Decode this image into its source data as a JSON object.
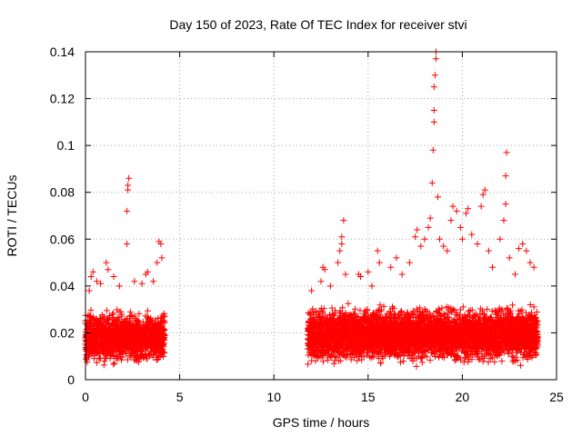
{
  "chart_data": {
    "type": "scatter",
    "title": "Day 150 of 2023, Rate Of TEC Index for receiver stvi",
    "xlabel": "GPS time / hours",
    "ylabel": "ROTI / TECUs",
    "xlim": [
      0,
      25
    ],
    "ylim": [
      0,
      0.14
    ],
    "xticks": [
      0,
      5,
      10,
      15,
      20,
      25
    ],
    "yticks": [
      0,
      0.02,
      0.04,
      0.06,
      0.08,
      0.1,
      0.12,
      0.14
    ],
    "xtick_labels": [
      "0",
      "5",
      "10",
      "15",
      "20",
      "25"
    ],
    "ytick_labels": [
      "0",
      "0.02",
      "0.04",
      "0.06",
      "0.08",
      "0.1",
      "0.12",
      "0.14"
    ],
    "grid": true,
    "marker": "+",
    "color": "#ff0000",
    "series": [
      {
        "name": "ROTI",
        "dense_segments": [
          {
            "x_start": 0.0,
            "x_end": 4.2,
            "y_low": 0.005,
            "y_high": 0.03
          },
          {
            "x_start": 11.8,
            "x_end": 24.0,
            "y_low": 0.005,
            "y_high": 0.032
          }
        ],
        "points": [
          [
            0.2,
            0.038
          ],
          [
            0.3,
            0.044
          ],
          [
            0.4,
            0.046
          ],
          [
            0.6,
            0.042
          ],
          [
            0.8,
            0.041
          ],
          [
            1.1,
            0.05
          ],
          [
            1.2,
            0.047
          ],
          [
            1.5,
            0.044
          ],
          [
            1.8,
            0.04
          ],
          [
            2.2,
            0.058
          ],
          [
            2.2,
            0.072
          ],
          [
            2.25,
            0.081
          ],
          [
            2.25,
            0.083
          ],
          [
            2.3,
            0.086
          ],
          [
            2.6,
            0.042
          ],
          [
            3.0,
            0.041
          ],
          [
            3.2,
            0.045
          ],
          [
            3.3,
            0.046
          ],
          [
            3.6,
            0.042
          ],
          [
            3.8,
            0.05
          ],
          [
            3.9,
            0.059
          ],
          [
            4.0,
            0.058
          ],
          [
            4.05,
            0.052
          ],
          [
            12.0,
            0.038
          ],
          [
            12.5,
            0.042
          ],
          [
            12.6,
            0.048
          ],
          [
            12.7,
            0.047
          ],
          [
            13.0,
            0.04
          ],
          [
            13.4,
            0.05
          ],
          [
            13.5,
            0.055
          ],
          [
            13.6,
            0.058
          ],
          [
            13.6,
            0.061
          ],
          [
            13.7,
            0.068
          ],
          [
            13.8,
            0.045
          ],
          [
            14.5,
            0.045
          ],
          [
            14.6,
            0.044
          ],
          [
            15.0,
            0.046
          ],
          [
            15.2,
            0.04
          ],
          [
            15.5,
            0.055
          ],
          [
            15.6,
            0.05
          ],
          [
            16.2,
            0.048
          ],
          [
            16.5,
            0.052
          ],
          [
            16.8,
            0.045
          ],
          [
            17.2,
            0.05
          ],
          [
            17.5,
            0.061
          ],
          [
            17.6,
            0.064
          ],
          [
            17.8,
            0.057
          ],
          [
            18.0,
            0.06
          ],
          [
            18.2,
            0.065
          ],
          [
            18.3,
            0.069
          ],
          [
            18.4,
            0.084
          ],
          [
            18.45,
            0.098
          ],
          [
            18.5,
            0.11
          ],
          [
            18.5,
            0.115
          ],
          [
            18.5,
            0.125
          ],
          [
            18.55,
            0.13
          ],
          [
            18.6,
            0.137
          ],
          [
            18.6,
            0.14
          ],
          [
            18.7,
            0.078
          ],
          [
            18.8,
            0.06
          ],
          [
            19.0,
            0.057
          ],
          [
            19.2,
            0.055
          ],
          [
            19.4,
            0.068
          ],
          [
            19.5,
            0.074
          ],
          [
            19.7,
            0.072
          ],
          [
            19.9,
            0.065
          ],
          [
            20.0,
            0.06
          ],
          [
            20.2,
            0.071
          ],
          [
            20.3,
            0.073
          ],
          [
            20.5,
            0.062
          ],
          [
            20.8,
            0.058
          ],
          [
            21.0,
            0.074
          ],
          [
            21.1,
            0.079
          ],
          [
            21.2,
            0.081
          ],
          [
            21.4,
            0.055
          ],
          [
            21.6,
            0.048
          ],
          [
            22.0,
            0.06
          ],
          [
            22.2,
            0.068
          ],
          [
            22.3,
            0.075
          ],
          [
            22.3,
            0.087
          ],
          [
            22.35,
            0.097
          ],
          [
            22.5,
            0.052
          ],
          [
            22.8,
            0.045
          ],
          [
            23.0,
            0.056
          ],
          [
            23.2,
            0.058
          ],
          [
            23.4,
            0.055
          ],
          [
            23.6,
            0.05
          ],
          [
            23.8,
            0.048
          ]
        ]
      }
    ]
  }
}
